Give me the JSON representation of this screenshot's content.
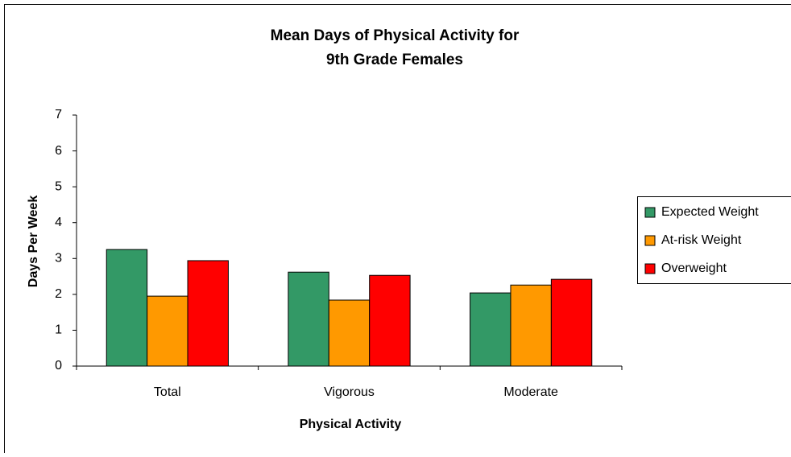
{
  "chart_data": {
    "type": "bar",
    "title": [
      "Mean Days of Physical Activity for",
      "9th Grade Females"
    ],
    "x_label": "Physical Activity",
    "y_label": "Days Per Week",
    "categories": [
      "Total",
      "Vigorous",
      "Moderate"
    ],
    "series": [
      {
        "name": "Expected Weight",
        "color": "#339966",
        "values": [
          3.25,
          2.62,
          2.04
        ]
      },
      {
        "name": "At-risk Weight",
        "color": "#ff9900",
        "values": [
          1.95,
          1.84,
          2.26
        ]
      },
      {
        "name": "Overweight",
        "color": "#ff0000",
        "values": [
          2.94,
          2.53,
          2.42
        ]
      }
    ],
    "ylim": [
      0,
      7
    ],
    "yticks": [
      0,
      1,
      2,
      3,
      4,
      5,
      6,
      7
    ],
    "grid": false,
    "legend": "right"
  }
}
